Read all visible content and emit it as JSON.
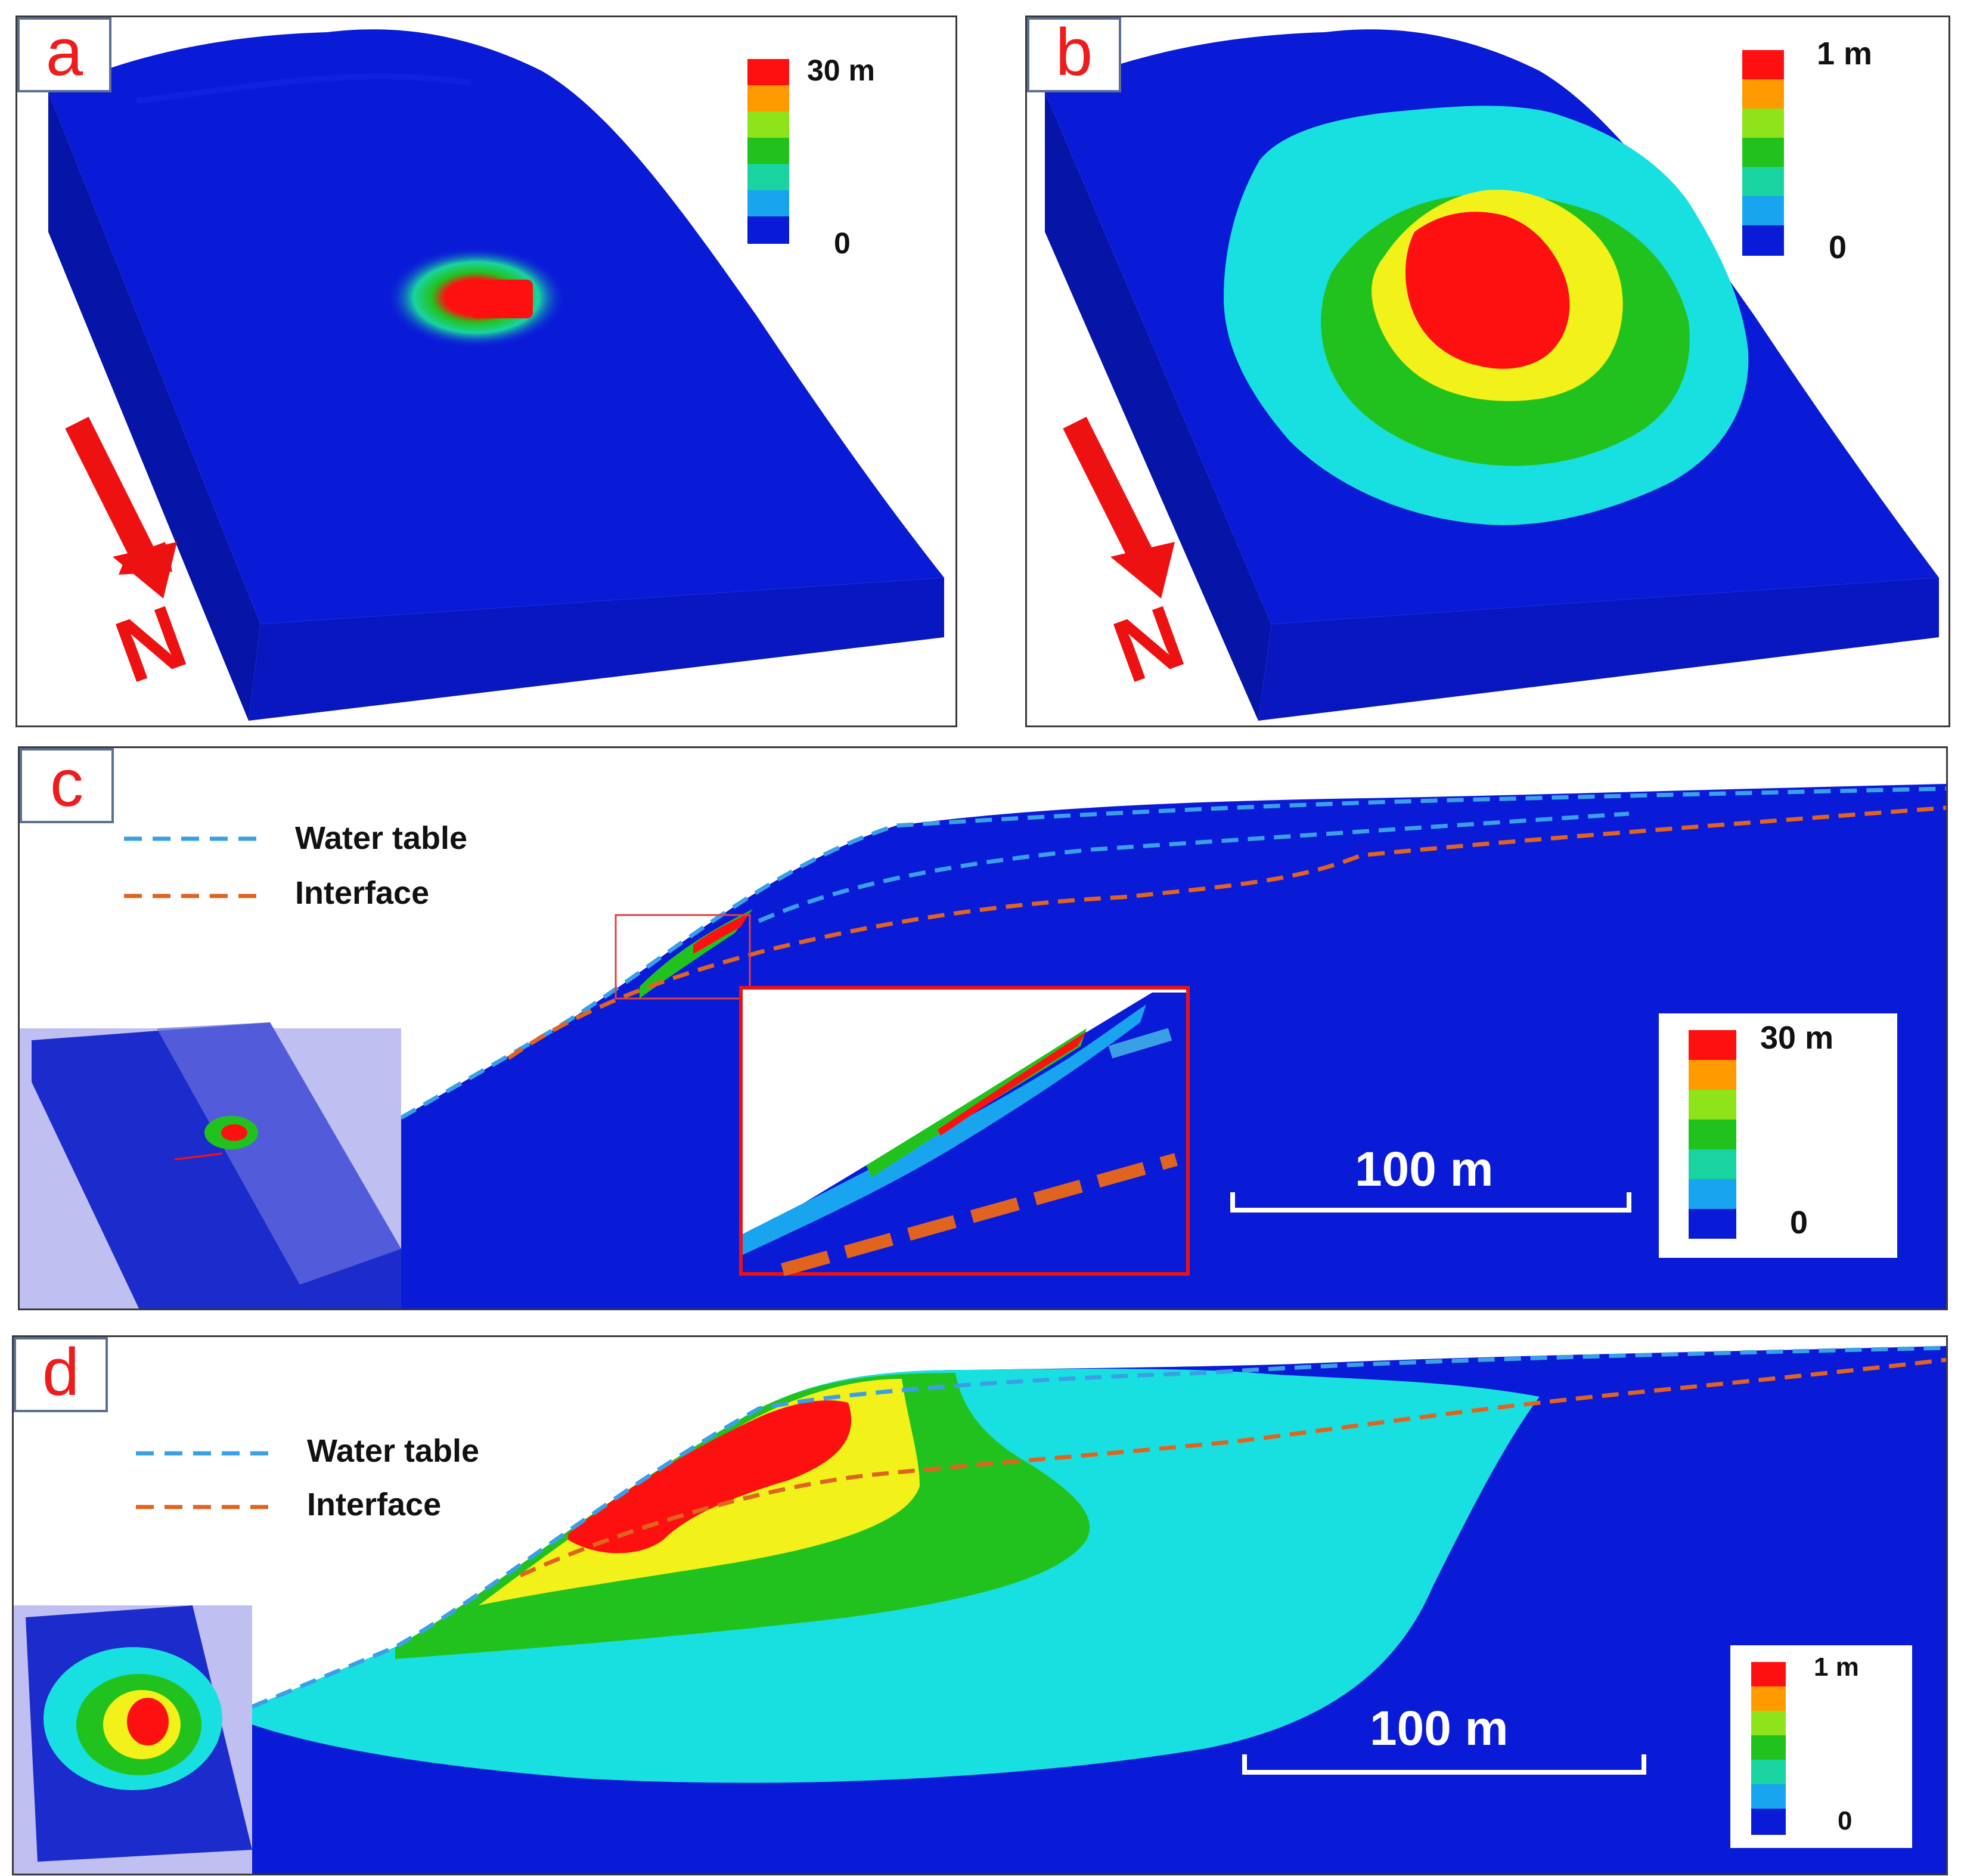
{
  "panels": {
    "a": {
      "label": "a",
      "legend_max": "30 m",
      "legend_min": "0",
      "north": "N"
    },
    "b": {
      "label": "b",
      "legend_max": "1 m",
      "legend_min": "0",
      "north": "N"
    },
    "c": {
      "label": "c",
      "legend_max": "30 m",
      "legend_min": "0",
      "water_table": "Water table",
      "interface": "Interface",
      "scale": "100 m"
    },
    "d": {
      "label": "d",
      "legend_max": "1 m",
      "legend_min": "0",
      "water_table": "Water table",
      "interface": "Interface",
      "scale": "100 m"
    }
  },
  "colors": {
    "background_blue": "#0a1bd8",
    "cyan": "#18e0e0",
    "light_green": "#22cc88",
    "green": "#22c21e",
    "yellow": "#f2f21a",
    "orange": "#ff9a00",
    "red": "#ff1010",
    "water_table_line": "#3aa0e6",
    "interface_line": "#e06420",
    "label_text": "#ee1c1c"
  },
  "legend_scale": [
    "#ff1010",
    "#ff9a00",
    "#8fe31a",
    "#22c21e",
    "#19d4a0",
    "#19a4f0",
    "#0a1bd8"
  ]
}
